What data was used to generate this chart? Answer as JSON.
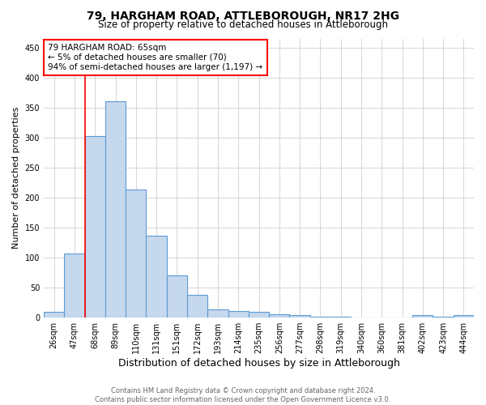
{
  "title": "79, HARGHAM ROAD, ATTLEBOROUGH, NR17 2HG",
  "subtitle": "Size of property relative to detached houses in Attleborough",
  "xlabel": "Distribution of detached houses by size in Attleborough",
  "ylabel": "Number of detached properties",
  "footer": "Contains HM Land Registry data © Crown copyright and database right 2024.\nContains public sector information licensed under the Open Government Licence v3.0.",
  "bin_labels": [
    "26sqm",
    "47sqm",
    "68sqm",
    "89sqm",
    "110sqm",
    "131sqm",
    "151sqm",
    "172sqm",
    "193sqm",
    "214sqm",
    "235sqm",
    "256sqm",
    "277sqm",
    "298sqm",
    "319sqm",
    "340sqm",
    "360sqm",
    "381sqm",
    "402sqm",
    "423sqm",
    "444sqm"
  ],
  "bar_heights": [
    9,
    107,
    302,
    360,
    213,
    136,
    70,
    38,
    14,
    11,
    9,
    6,
    4,
    2,
    1,
    0,
    0,
    0,
    4,
    1,
    4
  ],
  "bar_color": "#c5d8ed",
  "bar_edge_color": "#5b9bd5",
  "highlight_bin_index": 2,
  "annotation_line1": "79 HARGHAM ROAD: 65sqm",
  "annotation_line2": "← 5% of detached houses are smaller (70)",
  "annotation_line3": "94% of semi-detached houses are larger (1,197) →",
  "annotation_box_edge_color": "red",
  "vline_color": "red",
  "ylim": [
    0,
    465
  ],
  "yticks": [
    0,
    50,
    100,
    150,
    200,
    250,
    300,
    350,
    400,
    450
  ],
  "background_color": "white",
  "grid_color": "#d0d0d0",
  "title_fontsize": 10,
  "subtitle_fontsize": 8.5,
  "ylabel_fontsize": 8,
  "xlabel_fontsize": 9,
  "tick_fontsize": 7,
  "annotation_fontsize": 7.5,
  "footer_fontsize": 6
}
